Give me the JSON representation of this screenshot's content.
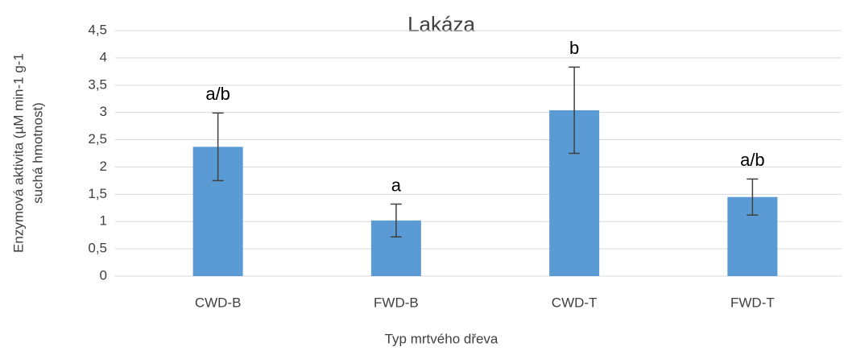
{
  "chart_data": {
    "type": "bar",
    "title": "Lakáza",
    "xlabel": "Typ mrtvého dřeva",
    "ylabel": [
      "Enzymová aktivita (µM min-1 g-1",
      "suchá hmotnost)"
    ],
    "categories": [
      "CWD-B",
      "FWD-B",
      "CWD-T",
      "FWD-T"
    ],
    "values": [
      2.37,
      1.02,
      3.04,
      1.45
    ],
    "errors": [
      0.62,
      0.3,
      0.79,
      0.33
    ],
    "annotations": [
      "a/b",
      "a",
      "b",
      "a/b"
    ],
    "color": "#5b9bd5",
    "ylim": [
      0,
      4.5
    ],
    "yticks": [
      0,
      {
        "value": 0.5,
        "label": "0,5"
      },
      1,
      {
        "value": 1.5,
        "label": "1,5"
      },
      2,
      {
        "value": 2.5,
        "label": "2,5"
      },
      3,
      {
        "value": 3.5,
        "label": "3,5"
      },
      4,
      {
        "value": 4.5,
        "label": "4,5"
      }
    ],
    "grid": true
  }
}
